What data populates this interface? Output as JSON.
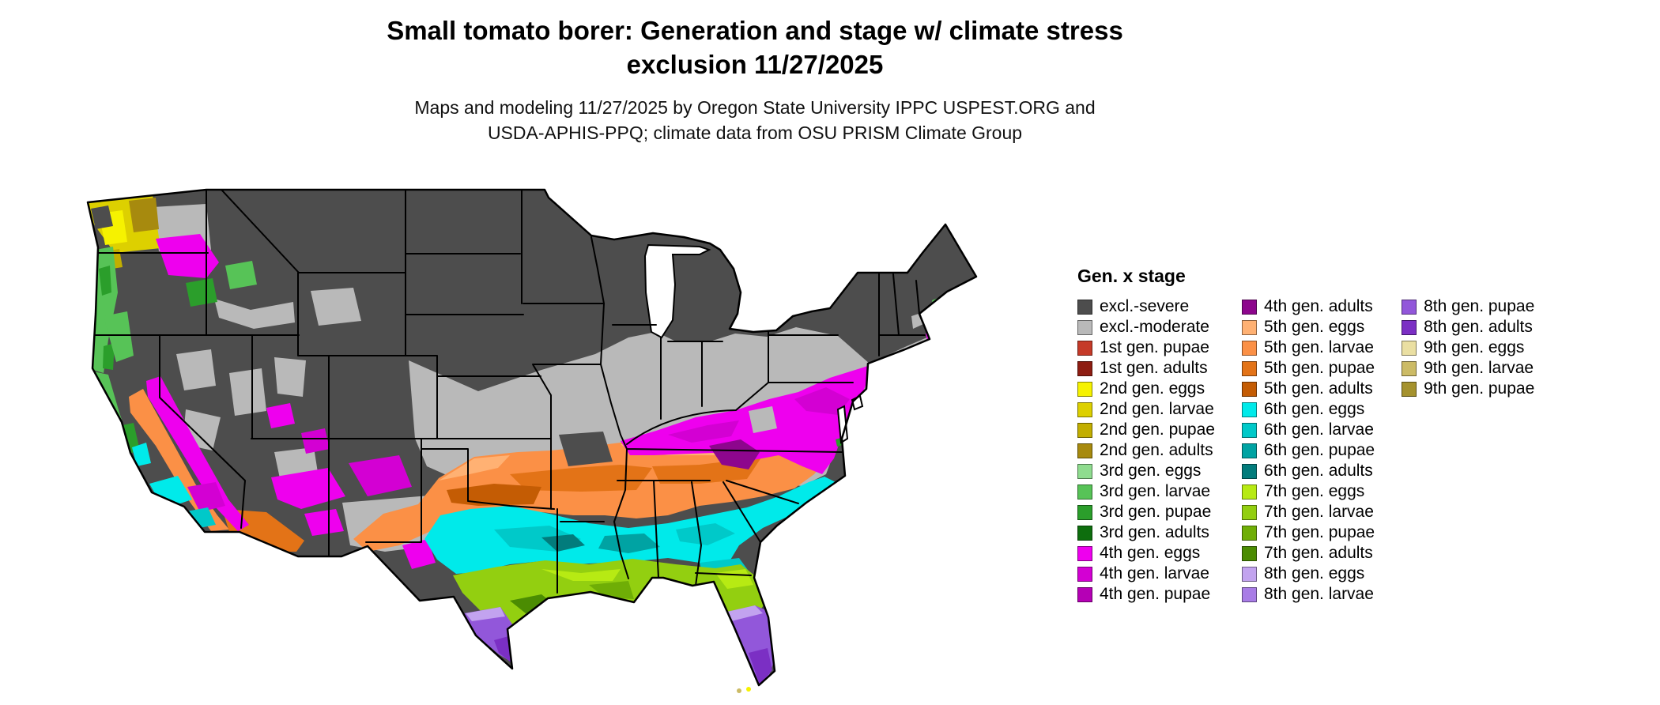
{
  "title": {
    "line1": "Small tomato borer: Generation and stage w/ climate stress",
    "line2": "exclusion 11/27/2025"
  },
  "subtitle": {
    "line1": "Maps and modeling 11/27/2025 by Oregon State University IPPC USPEST.ORG and",
    "line2": "USDA-APHIS-PPQ; climate data from OSU PRISM Climate Group"
  },
  "legend": {
    "title": "Gen. x stage",
    "columns": [
      [
        {
          "key": "excl-severe",
          "label": "excl.-severe",
          "color": "#4d4d4d"
        },
        {
          "key": "excl-moderate",
          "label": "excl.-moderate",
          "color": "#b9b9b9"
        },
        {
          "key": "g1-pupae",
          "label": "1st gen. pupae",
          "color": "#c53a28"
        },
        {
          "key": "g1-adults",
          "label": "1st gen. adults",
          "color": "#8e1d12"
        },
        {
          "key": "g2-eggs",
          "label": "2nd gen. eggs",
          "color": "#f6f200"
        },
        {
          "key": "g2-larvae",
          "label": "2nd gen. larvae",
          "color": "#ddd000"
        },
        {
          "key": "g2-pupae",
          "label": "2nd gen. pupae",
          "color": "#c2ae00"
        },
        {
          "key": "g2-adults",
          "label": "2nd gen. adults",
          "color": "#a78a0e"
        },
        {
          "key": "g3-eggs",
          "label": "3rd gen. eggs",
          "color": "#8fdc8f"
        },
        {
          "key": "g3-larvae",
          "label": "3rd gen. larvae",
          "color": "#57c357"
        },
        {
          "key": "g3-pupae",
          "label": "3rd gen. pupae",
          "color": "#2b9e2b"
        },
        {
          "key": "g3-adults",
          "label": "3rd gen. adults",
          "color": "#0e6e0e"
        },
        {
          "key": "g4-eggs",
          "label": "4th gen. eggs",
          "color": "#ee00ee"
        },
        {
          "key": "g4-larvae",
          "label": "4th gen. larvae",
          "color": "#d300d3"
        },
        {
          "key": "g4-pupae",
          "label": "4th gen. pupae",
          "color": "#b500b5"
        }
      ],
      [
        {
          "key": "g4-adults",
          "label": "4th gen. adults",
          "color": "#8d068d"
        },
        {
          "key": "g5-eggs",
          "label": "5th gen. eggs",
          "color": "#ffb173"
        },
        {
          "key": "g5-larvae",
          "label": "5th gen. larvae",
          "color": "#fb9046"
        },
        {
          "key": "g5-pupae",
          "label": "5th gen. pupae",
          "color": "#e37317"
        },
        {
          "key": "g5-adults",
          "label": "5th gen. adults",
          "color": "#c45c04"
        },
        {
          "key": "g6-eggs",
          "label": "6th gen. eggs",
          "color": "#00eaea"
        },
        {
          "key": "g6-larvae",
          "label": "6th gen. larvae",
          "color": "#00c9c9"
        },
        {
          "key": "g6-pupae",
          "label": "6th gen. pupae",
          "color": "#00a3a3"
        },
        {
          "key": "g6-adults",
          "label": "6th gen. adults",
          "color": "#027c7c"
        },
        {
          "key": "g7-eggs",
          "label": "7th gen. eggs",
          "color": "#b7ea13"
        },
        {
          "key": "g7-larvae",
          "label": "7th gen. larvae",
          "color": "#93cf10"
        },
        {
          "key": "g7-pupae",
          "label": "7th gen. pupae",
          "color": "#6fae06"
        },
        {
          "key": "g7-adults",
          "label": "7th gen. adults",
          "color": "#4b8c02"
        },
        {
          "key": "g8-eggs",
          "label": "8th gen. eggs",
          "color": "#c2a3ef"
        },
        {
          "key": "g8-larvae",
          "label": "8th gen. larvae",
          "color": "#a87ce6"
        }
      ],
      [
        {
          "key": "g8-pupae",
          "label": "8th gen. pupae",
          "color": "#9257da"
        },
        {
          "key": "g8-adults",
          "label": "8th gen. adults",
          "color": "#7b2fc4"
        },
        {
          "key": "g9-eggs",
          "label": "9th gen. eggs",
          "color": "#eadfa2"
        },
        {
          "key": "g9-larvae",
          "label": "9th gen. larvae",
          "color": "#ccbb66"
        },
        {
          "key": "g9-pupae",
          "label": "9th gen. pupae",
          "color": "#a5922e"
        }
      ]
    ]
  }
}
